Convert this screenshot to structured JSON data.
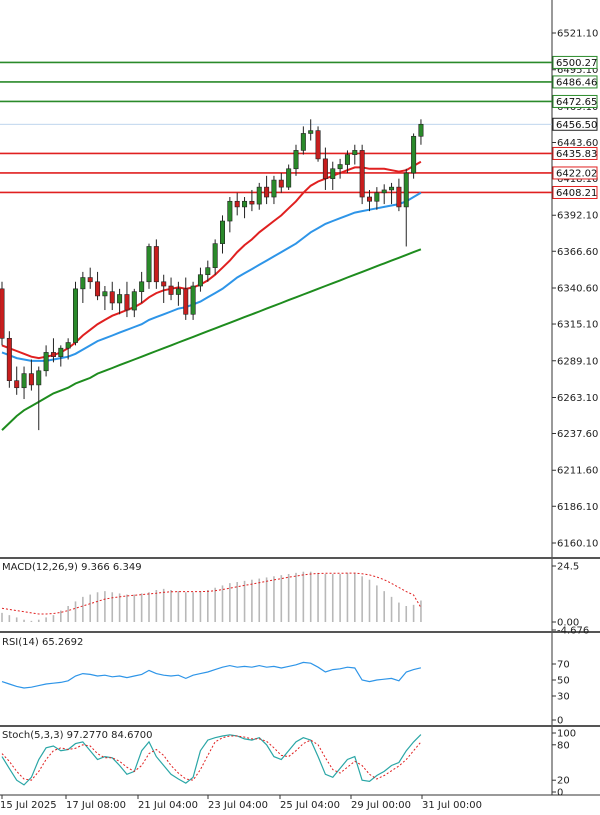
{
  "chart_data": {
    "type": "candlestick",
    "y_ticks": [
      6521.1,
      6495.1,
      6469.1,
      6443.6,
      6418.1,
      6392.1,
      6366.6,
      6340.6,
      6315.1,
      6289.1,
      6263.1,
      6237.6,
      6211.6,
      6186.1,
      6160.1
    ],
    "y_tick_labels": [
      "6521.10",
      "6495.10",
      "6469.10",
      "6443.60",
      "6418.10",
      "6392.10",
      "6366.60",
      "6340.60",
      "6315.10",
      "6289.10",
      "6263.10",
      "6237.60",
      "6211.60",
      "6186.10",
      "6160.10"
    ],
    "x_tick_labels": [
      "15 Jul 2025",
      "17 Jul 08:00",
      "21 Jul 04:00",
      "23 Jul 04:00",
      "25 Jul 04:00",
      "29 Jul 00:00",
      "31 Jul 00:00"
    ],
    "levels": [
      {
        "value": 6500.27,
        "label": "6500.27",
        "color": "#2a8a2a"
      },
      {
        "value": 6486.46,
        "label": "6486.46",
        "color": "#2a8a2a"
      },
      {
        "value": 6472.65,
        "label": "6472.65",
        "color": "#2a8a2a"
      },
      {
        "value": 6435.83,
        "label": "6435.83",
        "color": "#e02020"
      },
      {
        "value": 6422.02,
        "label": "6422.02",
        "color": "#e02020"
      },
      {
        "value": 6408.21,
        "label": "6408.21",
        "color": "#e02020"
      }
    ],
    "last_price": {
      "value": 6456.5,
      "label": "6456.50"
    },
    "candles": [
      [
        6340,
        6345,
        6300,
        6305
      ],
      [
        6305,
        6310,
        6270,
        6275
      ],
      [
        6275,
        6285,
        6265,
        6270
      ],
      [
        6270,
        6285,
        6262,
        6280
      ],
      [
        6280,
        6290,
        6268,
        6272
      ],
      [
        6272,
        6285,
        6240,
        6282
      ],
      [
        6282,
        6300,
        6278,
        6295
      ],
      [
        6295,
        6305,
        6288,
        6292
      ],
      [
        6292,
        6300,
        6285,
        6298
      ],
      [
        6298,
        6305,
        6290,
        6302
      ],
      [
        6302,
        6345,
        6300,
        6340
      ],
      [
        6340,
        6352,
        6330,
        6348
      ],
      [
        6348,
        6355,
        6340,
        6345
      ],
      [
        6345,
        6352,
        6332,
        6335
      ],
      [
        6335,
        6342,
        6325,
        6338
      ],
      [
        6338,
        6345,
        6325,
        6330
      ],
      [
        6330,
        6340,
        6322,
        6336
      ],
      [
        6336,
        6345,
        6320,
        6325
      ],
      [
        6325,
        6340,
        6320,
        6338
      ],
      [
        6338,
        6352,
        6330,
        6345
      ],
      [
        6345,
        6372,
        6340,
        6370
      ],
      [
        6370,
        6375,
        6340,
        6345
      ],
      [
        6345,
        6350,
        6330,
        6342
      ],
      [
        6342,
        6348,
        6332,
        6336
      ],
      [
        6336,
        6345,
        6328,
        6340
      ],
      [
        6340,
        6348,
        6318,
        6322
      ],
      [
        6322,
        6345,
        6318,
        6342
      ],
      [
        6342,
        6355,
        6338,
        6350
      ],
      [
        6350,
        6360,
        6345,
        6355
      ],
      [
        6355,
        6375,
        6350,
        6372
      ],
      [
        6372,
        6392,
        6365,
        6388
      ],
      [
        6388,
        6405,
        6380,
        6402
      ],
      [
        6402,
        6408,
        6392,
        6398
      ],
      [
        6398,
        6405,
        6390,
        6402
      ],
      [
        6402,
        6410,
        6395,
        6400
      ],
      [
        6400,
        6415,
        6396,
        6412
      ],
      [
        6412,
        6420,
        6400,
        6405
      ],
      [
        6405,
        6420,
        6400,
        6417
      ],
      [
        6417,
        6422,
        6408,
        6412
      ],
      [
        6412,
        6428,
        6410,
        6425
      ],
      [
        6425,
        6442,
        6420,
        6438
      ],
      [
        6438,
        6455,
        6435,
        6450
      ],
      [
        6450,
        6460,
        6445,
        6452
      ],
      [
        6452,
        6455,
        6430,
        6432
      ],
      [
        6432,
        6440,
        6410,
        6418
      ],
      [
        6418,
        6430,
        6410,
        6425
      ],
      [
        6425,
        6432,
        6418,
        6428
      ],
      [
        6428,
        6438,
        6422,
        6435
      ],
      [
        6435,
        6442,
        6428,
        6438
      ],
      [
        6438,
        6442,
        6400,
        6405
      ],
      [
        6405,
        6410,
        6395,
        6402
      ],
      [
        6402,
        6412,
        6396,
        6408
      ],
      [
        6408,
        6414,
        6400,
        6410
      ],
      [
        6410,
        6415,
        6400,
        6412
      ],
      [
        6412,
        6418,
        6395,
        6398
      ],
      [
        6398,
        6425,
        6370,
        6422
      ],
      [
        6422,
        6450,
        6418,
        6448
      ],
      [
        6448,
        6460,
        6442,
        6456.5
      ]
    ],
    "ma_red": [
      6300,
      6298,
      6296,
      6294,
      6292,
      6291,
      6292,
      6293,
      6295,
      6298,
      6302,
      6307,
      6311,
      6315,
      6318,
      6321,
      6323,
      6325,
      6327,
      6330,
      6334,
      6337,
      6339,
      6340,
      6341,
      6340,
      6341,
      6343,
      6346,
      6350,
      6355,
      6360,
      6366,
      6371,
      6375,
      6380,
      6384,
      6388,
      6392,
      6397,
      6402,
      6408,
      6413,
      6416,
      6418,
      6420,
      6422,
      6424,
      6426,
      6426,
      6425,
      6425,
      6425,
      6424,
      6423,
      6424,
      6427,
      6430
    ],
    "ma_blue": [
      6295,
      6293,
      6291,
      6290,
      6289,
      6289,
      6289,
      6290,
      6291,
      6292,
      6294,
      6297,
      6300,
      6303,
      6305,
      6307,
      6309,
      6311,
      6313,
      6315,
      6318,
      6320,
      6322,
      6324,
      6326,
      6327,
      6329,
      6331,
      6334,
      6337,
      6340,
      6344,
      6348,
      6351,
      6354,
      6357,
      6360,
      6363,
      6366,
      6369,
      6372,
      6376,
      6380,
      6383,
      6386,
      6388,
      6390,
      6392,
      6394,
      6395,
      6396,
      6397,
      6398,
      6399,
      6400,
      6402,
      6405,
      6408
    ],
    "ma_green": [
      6240,
      6245,
      6250,
      6254,
      6257,
      6260,
      6263,
      6266,
      6268,
      6270,
      6273,
      6275,
      6277,
      6280,
      6282,
      6284,
      6286,
      6288,
      6290,
      6292,
      6294,
      6296,
      6298,
      6300,
      6302,
      6304,
      6306,
      6308,
      6310,
      6312,
      6314,
      6316,
      6318,
      6320,
      6322,
      6324,
      6326,
      6328,
      6330,
      6332,
      6334,
      6336,
      6338,
      6340,
      6342,
      6344,
      6346,
      6348,
      6350,
      6352,
      6354,
      6356,
      6358,
      6360,
      6362,
      6364,
      6366,
      6368
    ],
    "macd": {
      "label": "MACD(12,26,9) 9.366 6.349",
      "ticks": [
        "24.5",
        "0.00",
        "-4.676"
      ],
      "hist": [
        4,
        3,
        2,
        1,
        0.5,
        1,
        2,
        3,
        5,
        7,
        9,
        11,
        12,
        13,
        13.5,
        13,
        12.5,
        12,
        12,
        12.5,
        13,
        14,
        14.5,
        14,
        13.5,
        13,
        13,
        13.5,
        14,
        15,
        16,
        17,
        17.5,
        18,
        18.5,
        19,
        19.5,
        20,
        20.5,
        21,
        21.5,
        22,
        22,
        21.5,
        21,
        21,
        21,
        21.5,
        21.5,
        20,
        18.5,
        16,
        13.5,
        11,
        8.5,
        7,
        7.5,
        9.4
      ],
      "signal": [
        6,
        5.5,
        5,
        4.5,
        4,
        3.5,
        3.5,
        3.7,
        4.2,
        5,
        6,
        7,
        8,
        9,
        10,
        10.6,
        11,
        11.4,
        11.7,
        12,
        12.3,
        12.6,
        13,
        13.2,
        13.3,
        13.3,
        13.3,
        13.3,
        13.4,
        13.7,
        14.2,
        14.8,
        15.4,
        16,
        16.6,
        17.2,
        17.8,
        18.4,
        19,
        19.6,
        20.1,
        20.6,
        21,
        21.2,
        21.3,
        21.3,
        21.3,
        21.4,
        21.4,
        21.1,
        20.6,
        19.7,
        18.5,
        16.9,
        15.1,
        13.3,
        11.8,
        6.3
      ]
    },
    "rsi": {
      "label": "RSI(14) 65.2692",
      "ticks": [
        "70",
        "50",
        "30",
        "0"
      ],
      "values": [
        48,
        45,
        42,
        40,
        41,
        43,
        45,
        46,
        47,
        49,
        55,
        58,
        57,
        55,
        56,
        54,
        55,
        53,
        55,
        57,
        62,
        58,
        56,
        55,
        56,
        52,
        56,
        58,
        60,
        63,
        66,
        68,
        66,
        67,
        66,
        68,
        66,
        67,
        65,
        67,
        69,
        72,
        71,
        66,
        60,
        63,
        64,
        66,
        65,
        50,
        48,
        50,
        51,
        52,
        49,
        60,
        63,
        65.3
      ]
    },
    "stoch": {
      "label": "Stoch(5,3,3) 97.2770 84.6700",
      "ticks": [
        "100",
        "80",
        "20",
        "0"
      ],
      "k": [
        60,
        40,
        20,
        12,
        25,
        55,
        75,
        78,
        70,
        72,
        82,
        85,
        70,
        55,
        60,
        58,
        45,
        30,
        35,
        70,
        85,
        60,
        45,
        30,
        22,
        15,
        25,
        70,
        88,
        92,
        95,
        97,
        95,
        90,
        88,
        92,
        80,
        60,
        55,
        70,
        85,
        92,
        88,
        60,
        30,
        25,
        40,
        55,
        60,
        20,
        18,
        28,
        35,
        45,
        50,
        70,
        85,
        97.3
      ],
      "d": [
        65,
        52,
        35,
        22,
        20,
        35,
        55,
        70,
        75,
        72,
        74,
        80,
        78,
        65,
        58,
        58,
        52,
        42,
        35,
        45,
        65,
        72,
        62,
        45,
        32,
        22,
        20,
        38,
        62,
        85,
        92,
        95,
        95,
        93,
        90,
        90,
        86,
        75,
        62,
        60,
        70,
        82,
        88,
        80,
        58,
        38,
        32,
        42,
        52,
        45,
        30,
        22,
        28,
        36,
        44,
        55,
        70,
        84.7
      ]
    }
  }
}
